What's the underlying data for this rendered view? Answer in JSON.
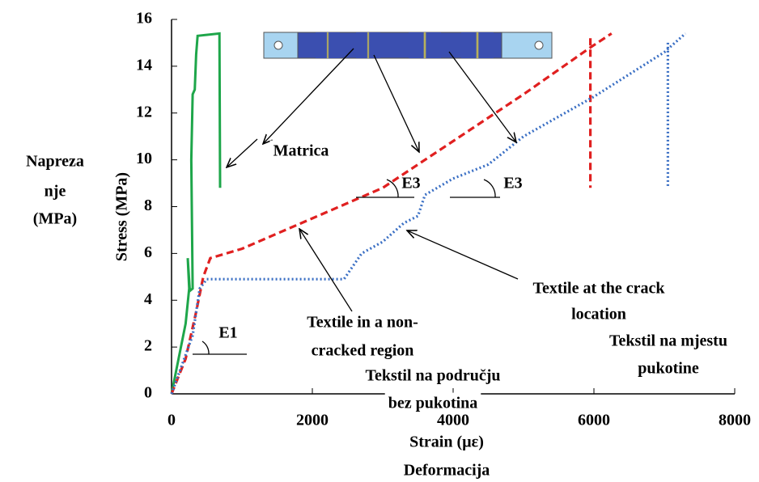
{
  "chart_data": {
    "type": "line",
    "xlabel": "Strain (µε)",
    "ylabel": "Stress (MPa)",
    "xlabel_translation": "Deformacija",
    "ylabel_translation": [
      "Napreza",
      "nje",
      "(MPa)"
    ],
    "xlim": [
      0,
      8000
    ],
    "ylim": [
      0,
      16
    ],
    "xticks": [
      0,
      2000,
      4000,
      6000,
      8000
    ],
    "yticks": [
      0,
      2,
      4,
      6,
      8,
      10,
      12,
      14,
      16
    ],
    "series": [
      {
        "color": "#1ea64a",
        "style": "solid",
        "x": [
          0,
          100,
          200,
          250,
          230,
          260,
          300,
          280,
          300,
          330,
          350,
          370,
          680,
          690
        ],
        "values": [
          0,
          1.5,
          3,
          4.5,
          5.8,
          4.4,
          4.5,
          10,
          12.8,
          13,
          14.5,
          15.3,
          15.4,
          8.8
        ]
      },
      {
        "color": "#e02020",
        "style": "dashed",
        "x": [
          0,
          200,
          350,
          450,
          550,
          1000,
          2000,
          3000,
          4000,
          5000,
          5950,
          6250,
          6250,
          5950,
          5950
        ],
        "values": [
          0,
          1.5,
          3.5,
          5,
          5.8,
          6.2,
          7.5,
          8.8,
          10.8,
          12.8,
          14.8,
          15.4,
          null,
          15.2,
          8.8
        ]
      },
      {
        "color": "#3a6fc4",
        "style": "dotted",
        "x": [
          0,
          300,
          400,
          500,
          2450,
          2700,
          3000,
          3300,
          3500,
          3600,
          4000,
          4500,
          5000,
          6000,
          7000,
          7300,
          7300,
          7050,
          7050
        ],
        "values": [
          0,
          2.5,
          4.5,
          4.9,
          4.9,
          6,
          6.5,
          7.3,
          7.6,
          8.5,
          9.2,
          9.8,
          11,
          12.7,
          14.6,
          15.4,
          null,
          15,
          8.8
        ]
      }
    ],
    "annotations": [
      {
        "lines": [
          "Matrica"
        ]
      },
      {
        "lines": [
          "Textile in a non-",
          "cracked region"
        ]
      },
      {
        "lines": [
          "Textile at the crack",
          "location"
        ]
      },
      {
        "lines": [
          "Tekstil na području",
          "bez pukotina"
        ]
      },
      {
        "lines": [
          "Tekstil na mjestu",
          "pukotine"
        ]
      },
      {
        "lines": [
          "E1"
        ]
      },
      {
        "lines": [
          "E3"
        ]
      },
      {
        "lines": [
          "E3"
        ]
      }
    ]
  }
}
